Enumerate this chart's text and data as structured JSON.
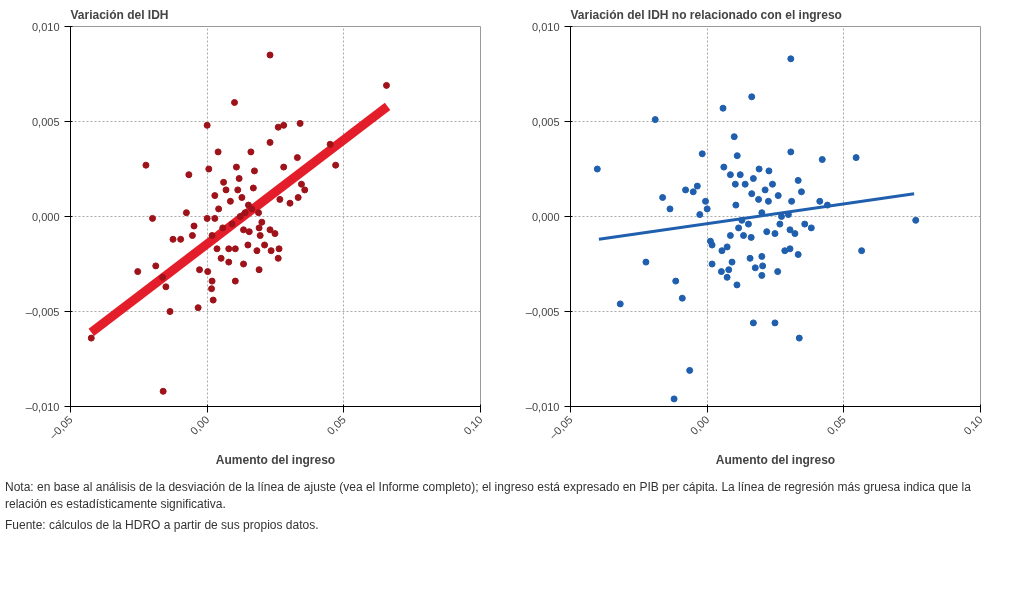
{
  "chart_data": [
    {
      "type": "scatter",
      "title": "Variación del IDH",
      "xlabel": "Aumento del ingreso",
      "xlim": [
        -0.05,
        0.1
      ],
      "ylim": [
        -0.01,
        0.01
      ],
      "xticks": [
        {
          "value": -0.05,
          "label": "–0,05"
        },
        {
          "value": 0,
          "label": "0,00"
        },
        {
          "value": 0.05,
          "label": "0,05"
        },
        {
          "value": 0.1,
          "label": "0,10"
        }
      ],
      "yticks": [
        {
          "value": -0.01,
          "label": "–0,010"
        },
        {
          "value": -0.005,
          "label": "–0,005"
        },
        {
          "value": 0,
          "label": "0,000"
        },
        {
          "value": 0.005,
          "label": "0,005"
        },
        {
          "value": 0.01,
          "label": "0,010"
        }
      ],
      "grid": true,
      "series": [
        {
          "color": "#9e1219",
          "x": [
            0.023,
            0.0656,
            0.01,
            0.0,
            0.026,
            0.028,
            0.034,
            0.023,
            0.004,
            0.016,
            -0.0224,
            0.0107,
            0.0173,
            0.028,
            0.033,
            0.045,
            0.047,
            -0.0067,
            0.0006,
            0.0117,
            0.006,
            0.0028,
            0.0069,
            0.0112,
            0.0169,
            0.0345,
            0.0357,
            0.0333,
            0.0303,
            0.0266,
            0.0042,
            0.0085,
            0.0127,
            0.0151,
            -0.02,
            -0.0076,
            0.0,
            0.0028,
            -0.0048,
            -0.0054,
            -0.0125,
            -0.0097,
            0.0018,
            0.0057,
            0.0133,
            0.0154,
            0.019,
            0.0194,
            0.023,
            0.0248,
            0.0149,
            0.0182,
            0.021,
            0.0036,
            0.0079,
            0.0103,
            0.0263,
            0.0234,
            0.026,
            0.0051,
            0.0079,
            0.0133,
            0.019,
            -0.0254,
            -0.0188,
            -0.0163,
            -0.0151,
            -0.0028,
            0.0002,
            0.0018,
            0.0103,
            0.0016,
            0.0022,
            -0.0033,
            -0.0136,
            -0.0424,
            -0.0161,
            0.0121,
            0.0139,
            0.0163,
            0.0188,
            0.02,
            0.0091
          ],
          "values": [
            0.0085,
            0.0069,
            0.006,
            0.0048,
            0.0047,
            0.0048,
            0.0049,
            0.0039,
            0.0034,
            0.0034,
            0.0027,
            0.0026,
            0.0024,
            0.0026,
            0.0031,
            0.0038,
            0.0027,
            0.0022,
            0.0025,
            0.002,
            0.0018,
            0.0011,
            0.0014,
            0.0014,
            0.0015,
            0.0017,
            0.0014,
            0.001,
            0.0007,
            0.0009,
            0.0004,
            0.0008,
            0.001,
            0.0006,
            -0.0001,
            0.0002,
            -0.0001,
            -0.0001,
            -0.0005,
            -0.001,
            -0.0012,
            -0.0012,
            -0.001,
            -0.0006,
            -0.0007,
            -0.0008,
            -0.0006,
            -0.001,
            -0.0007,
            -0.0009,
            -0.0015,
            -0.0018,
            -0.0015,
            -0.0017,
            -0.0017,
            -0.0017,
            -0.0017,
            -0.0018,
            -0.0022,
            -0.0022,
            -0.0024,
            -0.0025,
            -0.0028,
            -0.0029,
            -0.0026,
            -0.0032,
            -0.0037,
            -0.0028,
            -0.0029,
            -0.0034,
            -0.0034,
            -0.0038,
            -0.0044,
            -0.0048,
            -0.005,
            -0.0064,
            -0.0092,
            0.0,
            0.0002,
            0.0004,
            0.0002,
            -0.0003,
            -0.0004
          ]
        },
        {
          "type": "line",
          "color": "#e31e2a",
          "x": [
            -0.0424,
            0.066
          ],
          "values": [
            -0.0061,
            0.0058
          ]
        }
      ]
    },
    {
      "type": "scatter",
      "title": "Variación del IDH no relacionado con el ingreso",
      "xlabel": "Aumento del ingreso",
      "xlim": [
        -0.05,
        0.1
      ],
      "ylim": [
        -0.01,
        0.01
      ],
      "xticks": [
        {
          "value": -0.05,
          "label": "–0,05"
        },
        {
          "value": 0,
          "label": "0,00"
        },
        {
          "value": 0.05,
          "label": "0,05"
        },
        {
          "value": 0.1,
          "label": "0,10"
        }
      ],
      "yticks": [
        {
          "value": -0.01,
          "label": "–0,010"
        },
        {
          "value": -0.005,
          "label": "–0,005"
        },
        {
          "value": 0,
          "label": "0,000"
        },
        {
          "value": 0.005,
          "label": "0,005"
        },
        {
          "value": 0.01,
          "label": "0,010"
        }
      ],
      "grid": true,
      "annotations": [
        "Nota: en base al análisis de la desviación de la línea de ajuste (vea el Informe completo); el ingreso está expresado en PIB per cápita. La línea de regresión más gruesa indica que la relación es estadísticamente significativa.",
        "Fuente: cálculos de la HDRO a partir de sus propios datos."
      ],
      "series": [
        {
          "color": "#1f5fae",
          "x": [
            0.0306,
            0.0163,
            0.0058,
            -0.019,
            0.0099,
            -0.0402,
            -0.0018,
            0.011,
            0.0306,
            0.0421,
            0.0545,
            0.0061,
            0.0085,
            0.0121,
            0.0139,
            0.0169,
            0.019,
            0.0226,
            -0.0079,
            -0.0051,
            -0.0036,
            -0.0163,
            -0.0136,
            -0.0027,
            -0.0006,
            0.0,
            0.0103,
            0.0105,
            0.0163,
            0.0188,
            0.0212,
            0.0239,
            0.0224,
            0.026,
            0.0333,
            0.0345,
            0.0309,
            0.0412,
            0.044,
            0.0763,
            0.0127,
            0.0151,
            0.0115,
            0.0133,
            0.0161,
            0.02,
            0.0218,
            0.0248,
            0.0272,
            0.0266,
            0.0297,
            0.0303,
            0.0321,
            0.0357,
            0.0381,
            0.0284,
            0.0303,
            0.0333,
            0.0012,
            0.0018,
            0.0054,
            0.0073,
            0.0085,
            0.0091,
            0.0018,
            0.0052,
            0.0073,
            0.0079,
            0.0109,
            0.0157,
            0.0176,
            0.02,
            0.0203,
            0.02,
            0.0258,
            -0.0224,
            0.0565,
            -0.0115,
            -0.0091,
            -0.0318,
            0.0169,
            0.0248,
            0.0337,
            -0.0064,
            -0.0121
          ],
          "values": [
            0.0083,
            0.0063,
            0.0057,
            0.0051,
            0.0042,
            0.0025,
            0.0033,
            0.0032,
            0.0034,
            0.003,
            0.0031,
            0.0026,
            0.0022,
            0.0022,
            0.0017,
            0.002,
            0.0025,
            0.0024,
            0.0014,
            0.0013,
            0.0016,
            0.001,
            0.0004,
            0.0001,
            0.0008,
            0.0004,
            0.0017,
            0.0006,
            0.0012,
            0.0009,
            0.0014,
            0.0017,
            0.0008,
            0.0011,
            0.0019,
            0.0013,
            0.0008,
            0.0008,
            0.0006,
            -0.0002,
            -0.0002,
            -0.0004,
            -0.0006,
            -0.001,
            -0.0011,
            0.0002,
            -0.0008,
            -0.0009,
            0.0,
            -0.0004,
            0.0001,
            -0.0007,
            -0.0009,
            -0.0004,
            -0.0006,
            -0.0018,
            -0.0017,
            -0.002,
            -0.0013,
            -0.0015,
            -0.0018,
            -0.0016,
            -0.001,
            -0.0024,
            -0.0025,
            -0.0029,
            -0.0032,
            -0.0028,
            -0.0036,
            -0.0022,
            -0.0027,
            -0.0021,
            -0.0026,
            -0.0031,
            -0.0029,
            -0.0024,
            -0.0018,
            -0.0034,
            -0.0043,
            -0.0046,
            -0.0056,
            -0.0056,
            -0.0064,
            -0.0081,
            -0.0096
          ]
        },
        {
          "type": "line",
          "color": "#1f5fae",
          "x": [
            -0.0396,
            0.0757
          ],
          "values": [
            -0.0012,
            0.0012
          ]
        }
      ]
    }
  ]
}
